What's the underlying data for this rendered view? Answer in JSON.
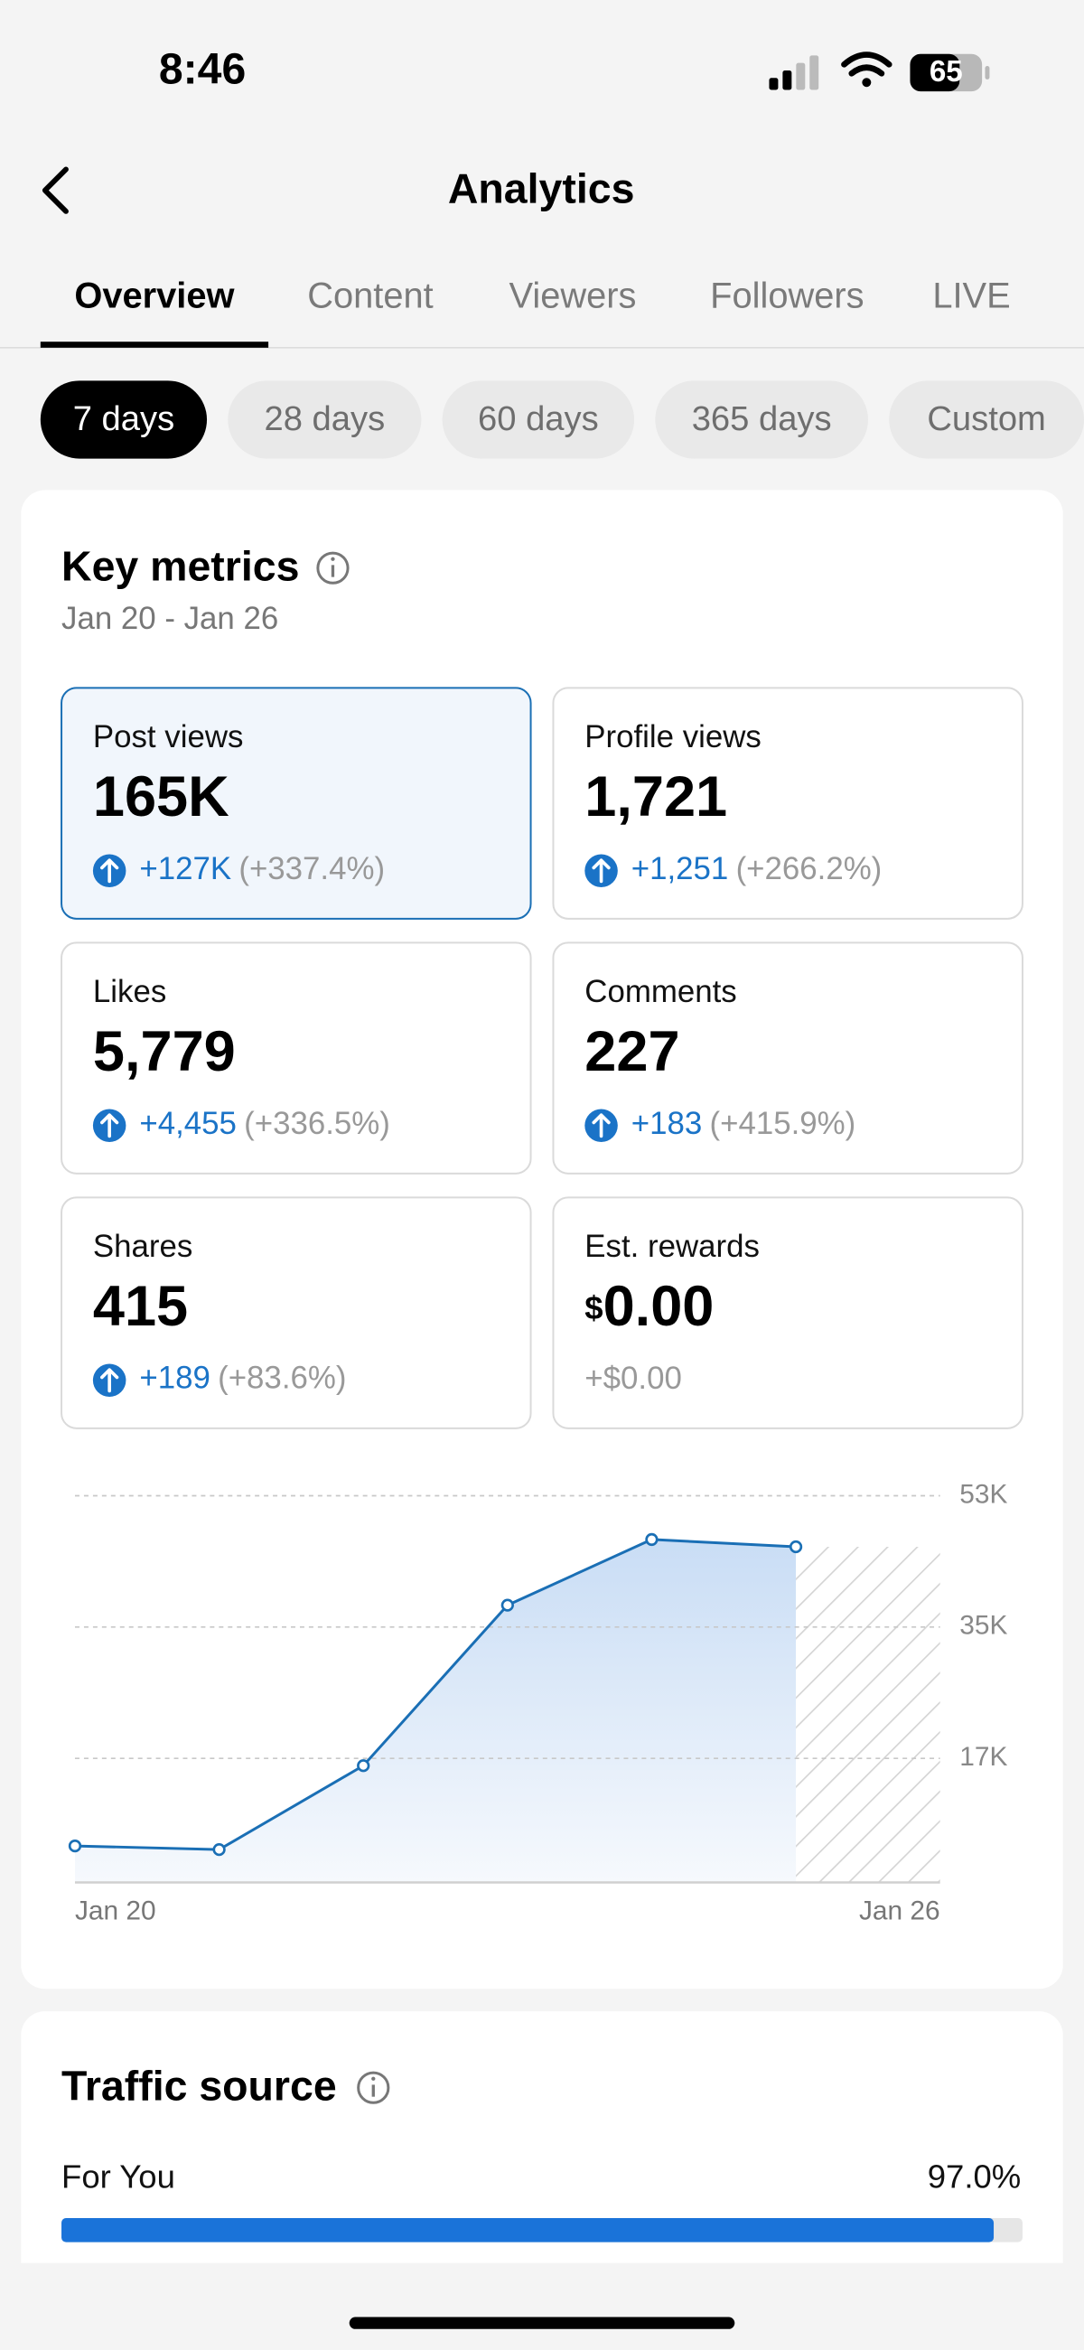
{
  "status_bar": {
    "time": "8:46",
    "battery": "65"
  },
  "header": {
    "title": "Analytics"
  },
  "tabs": [
    "Overview",
    "Content",
    "Viewers",
    "Followers",
    "LIVE"
  ],
  "periods": [
    "7 days",
    "28 days",
    "60 days",
    "365 days",
    "Custom"
  ],
  "key_metrics": {
    "title": "Key metrics",
    "date_range": "Jan 20 - Jan 26",
    "cards": [
      {
        "label": "Post views",
        "value": "165K",
        "change": "+127K",
        "change_pct": "(+337.4%)"
      },
      {
        "label": "Profile views",
        "value": "1,721",
        "change": "+1,251",
        "change_pct": "(+266.2%)"
      },
      {
        "label": "Likes",
        "value": "5,779",
        "change": "+4,455",
        "change_pct": "(+336.5%)"
      },
      {
        "label": "Comments",
        "value": "227",
        "change": "+183",
        "change_pct": "(+415.9%)"
      },
      {
        "label": "Shares",
        "value": "415",
        "change": "+189",
        "change_pct": "(+83.6%)"
      },
      {
        "label": "Est. rewards",
        "currency": "$",
        "value": "0.00",
        "change": "+$0.00"
      }
    ],
    "chart_data": {
      "type": "line",
      "x": [
        "Jan 20",
        null,
        null,
        null,
        null,
        null,
        "Jan 26"
      ],
      "values": [
        5000,
        4500,
        16000,
        38000,
        47000,
        46000,
        null
      ],
      "color": "#1a6fb5",
      "ylim": [
        0,
        53000
      ],
      "yticks": [
        {
          "value": 17000,
          "label": "17K"
        },
        {
          "value": 35000,
          "label": "35K"
        },
        {
          "value": 53000,
          "label": "53K"
        }
      ],
      "grid": true
    }
  },
  "traffic_source": {
    "title": "Traffic source",
    "rows": [
      {
        "name": "For You",
        "value": 97.0,
        "label": "97.0%"
      }
    ]
  }
}
